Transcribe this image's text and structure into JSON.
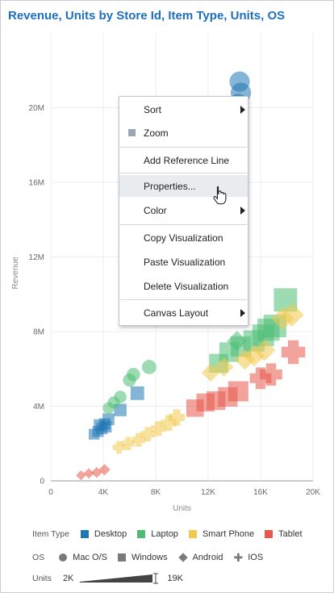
{
  "title": "Revenue, Units by Store Id, Item Type, Units, OS",
  "chart_data": {
    "type": "scatter",
    "xlabel": "Units",
    "ylabel": "Revenue",
    "xlim": [
      0,
      20000
    ],
    "ylim": [
      0,
      24000000
    ],
    "x_ticks": [
      "0",
      "4K",
      "8K",
      "12K",
      "16K",
      "20K"
    ],
    "x_tick_values": [
      0,
      4000,
      8000,
      12000,
      16000,
      20000
    ],
    "y_ticks": [
      "0",
      "4M",
      "8M",
      "12M",
      "16M",
      "20M"
    ],
    "y_tick_values": [
      0,
      4000000,
      8000000,
      12000000,
      16000000,
      20000000
    ],
    "grid": true,
    "series": [
      {
        "name": "Desktop",
        "color": "#1f77b4",
        "points": [
          {
            "x": 3300,
            "y": 2500000,
            "shape": "square"
          },
          {
            "x": 3600,
            "y": 2650000,
            "shape": "square"
          },
          {
            "x": 3900,
            "y": 2800000,
            "shape": "square"
          },
          {
            "x": 4100,
            "y": 3050000,
            "shape": "square"
          },
          {
            "x": 4400,
            "y": 3300000,
            "shape": "square"
          },
          {
            "x": 4200,
            "y": 2900000,
            "shape": "square"
          },
          {
            "x": 3700,
            "y": 3000000,
            "shape": "square"
          },
          {
            "x": 5300,
            "y": 3800000,
            "shape": "square"
          },
          {
            "x": 6600,
            "y": 4700000,
            "shape": "square"
          },
          {
            "x": 14400,
            "y": 21400000,
            "shape": "circle"
          },
          {
            "x": 14500,
            "y": 20800000,
            "shape": "circle"
          },
          {
            "x": 14300,
            "y": 20200000,
            "shape": "circle"
          }
        ]
      },
      {
        "name": "Laptop",
        "color": "#4dbd74",
        "points": [
          {
            "x": 4400,
            "y": 3900000,
            "shape": "circle"
          },
          {
            "x": 4800,
            "y": 4200000,
            "shape": "circle"
          },
          {
            "x": 5300,
            "y": 4500000,
            "shape": "circle"
          },
          {
            "x": 6000,
            "y": 5400000,
            "shape": "circle"
          },
          {
            "x": 6300,
            "y": 5700000,
            "shape": "circle"
          },
          {
            "x": 7500,
            "y": 6100000,
            "shape": "circle"
          },
          {
            "x": 12800,
            "y": 6300000,
            "shape": "square"
          },
          {
            "x": 13600,
            "y": 6900000,
            "shape": "square"
          },
          {
            "x": 14500,
            "y": 7200000,
            "shape": "square"
          },
          {
            "x": 15500,
            "y": 7500000,
            "shape": "square"
          },
          {
            "x": 16200,
            "y": 7800000,
            "shape": "square"
          },
          {
            "x": 17100,
            "y": 8300000,
            "shape": "square"
          },
          {
            "x": 17900,
            "y": 9700000,
            "shape": "square"
          },
          {
            "x": 16600,
            "y": 8100000,
            "shape": "square"
          },
          {
            "x": 14200,
            "y": 7500000,
            "shape": "diamond"
          }
        ]
      },
      {
        "name": "Smart Phone",
        "color": "#f2c94c",
        "points": [
          {
            "x": 5200,
            "y": 1800000,
            "shape": "plus"
          },
          {
            "x": 5900,
            "y": 2000000,
            "shape": "plus"
          },
          {
            "x": 6700,
            "y": 2200000,
            "shape": "plus"
          },
          {
            "x": 7400,
            "y": 2500000,
            "shape": "plus"
          },
          {
            "x": 8200,
            "y": 2800000,
            "shape": "plus"
          },
          {
            "x": 9000,
            "y": 3100000,
            "shape": "plus"
          },
          {
            "x": 9600,
            "y": 3400000,
            "shape": "plus"
          },
          {
            "x": 12200,
            "y": 5800000,
            "shape": "diamond"
          },
          {
            "x": 13200,
            "y": 6100000,
            "shape": "diamond"
          },
          {
            "x": 14800,
            "y": 6500000,
            "shape": "diamond"
          },
          {
            "x": 16300,
            "y": 7000000,
            "shape": "diamond"
          },
          {
            "x": 17700,
            "y": 8700000,
            "shape": "diamond"
          },
          {
            "x": 18400,
            "y": 8900000,
            "shape": "diamond"
          },
          {
            "x": 15500,
            "y": 6700000,
            "shape": "diamond"
          }
        ]
      },
      {
        "name": "Tablet",
        "color": "#e8584a",
        "points": [
          {
            "x": 2300,
            "y": 300000,
            "shape": "diamond"
          },
          {
            "x": 2900,
            "y": 400000,
            "shape": "diamond"
          },
          {
            "x": 3500,
            "y": 450000,
            "shape": "diamond"
          },
          {
            "x": 4100,
            "y": 600000,
            "shape": "diamond"
          },
          {
            "x": 11000,
            "y": 3900000,
            "shape": "square"
          },
          {
            "x": 11800,
            "y": 4200000,
            "shape": "square"
          },
          {
            "x": 12600,
            "y": 4300000,
            "shape": "square"
          },
          {
            "x": 13500,
            "y": 4500000,
            "shape": "square"
          },
          {
            "x": 14300,
            "y": 4800000,
            "shape": "square"
          },
          {
            "x": 16000,
            "y": 5500000,
            "shape": "plus"
          },
          {
            "x": 16800,
            "y": 5700000,
            "shape": "plus"
          },
          {
            "x": 18500,
            "y": 6900000,
            "shape": "plus"
          }
        ]
      }
    ]
  },
  "context_menu": {
    "items": [
      {
        "label": "Sort",
        "submenu": true
      },
      {
        "label": "Zoom",
        "submenu": false,
        "icon": "zoom-square-icon"
      },
      {
        "label": "Add Reference Line",
        "submenu": false
      },
      {
        "label": "Properties...",
        "submenu": false,
        "hover": true
      },
      {
        "label": "Color",
        "submenu": true
      },
      {
        "label": "Copy Visualization",
        "submenu": false
      },
      {
        "label": "Paste Visualization",
        "submenu": false
      },
      {
        "label": "Delete Visualization",
        "submenu": false
      },
      {
        "label": "Canvas Layout",
        "submenu": true
      }
    ]
  },
  "legend": {
    "item_type_title": "Item Type",
    "item_types": [
      {
        "label": "Desktop",
        "color": "#1f77b4"
      },
      {
        "label": "Laptop",
        "color": "#4dbd74"
      },
      {
        "label": "Smart Phone",
        "color": "#f2c94c"
      },
      {
        "label": "Tablet",
        "color": "#e8584a"
      }
    ],
    "os_title": "OS",
    "os": [
      {
        "label": "Mac O/S",
        "shape": "circle"
      },
      {
        "label": "Windows",
        "shape": "square"
      },
      {
        "label": "Android",
        "shape": "diamond"
      },
      {
        "label": "IOS",
        "shape": "plus"
      }
    ],
    "units_title": "Units",
    "units_min": "2K",
    "units_max": "19K"
  }
}
